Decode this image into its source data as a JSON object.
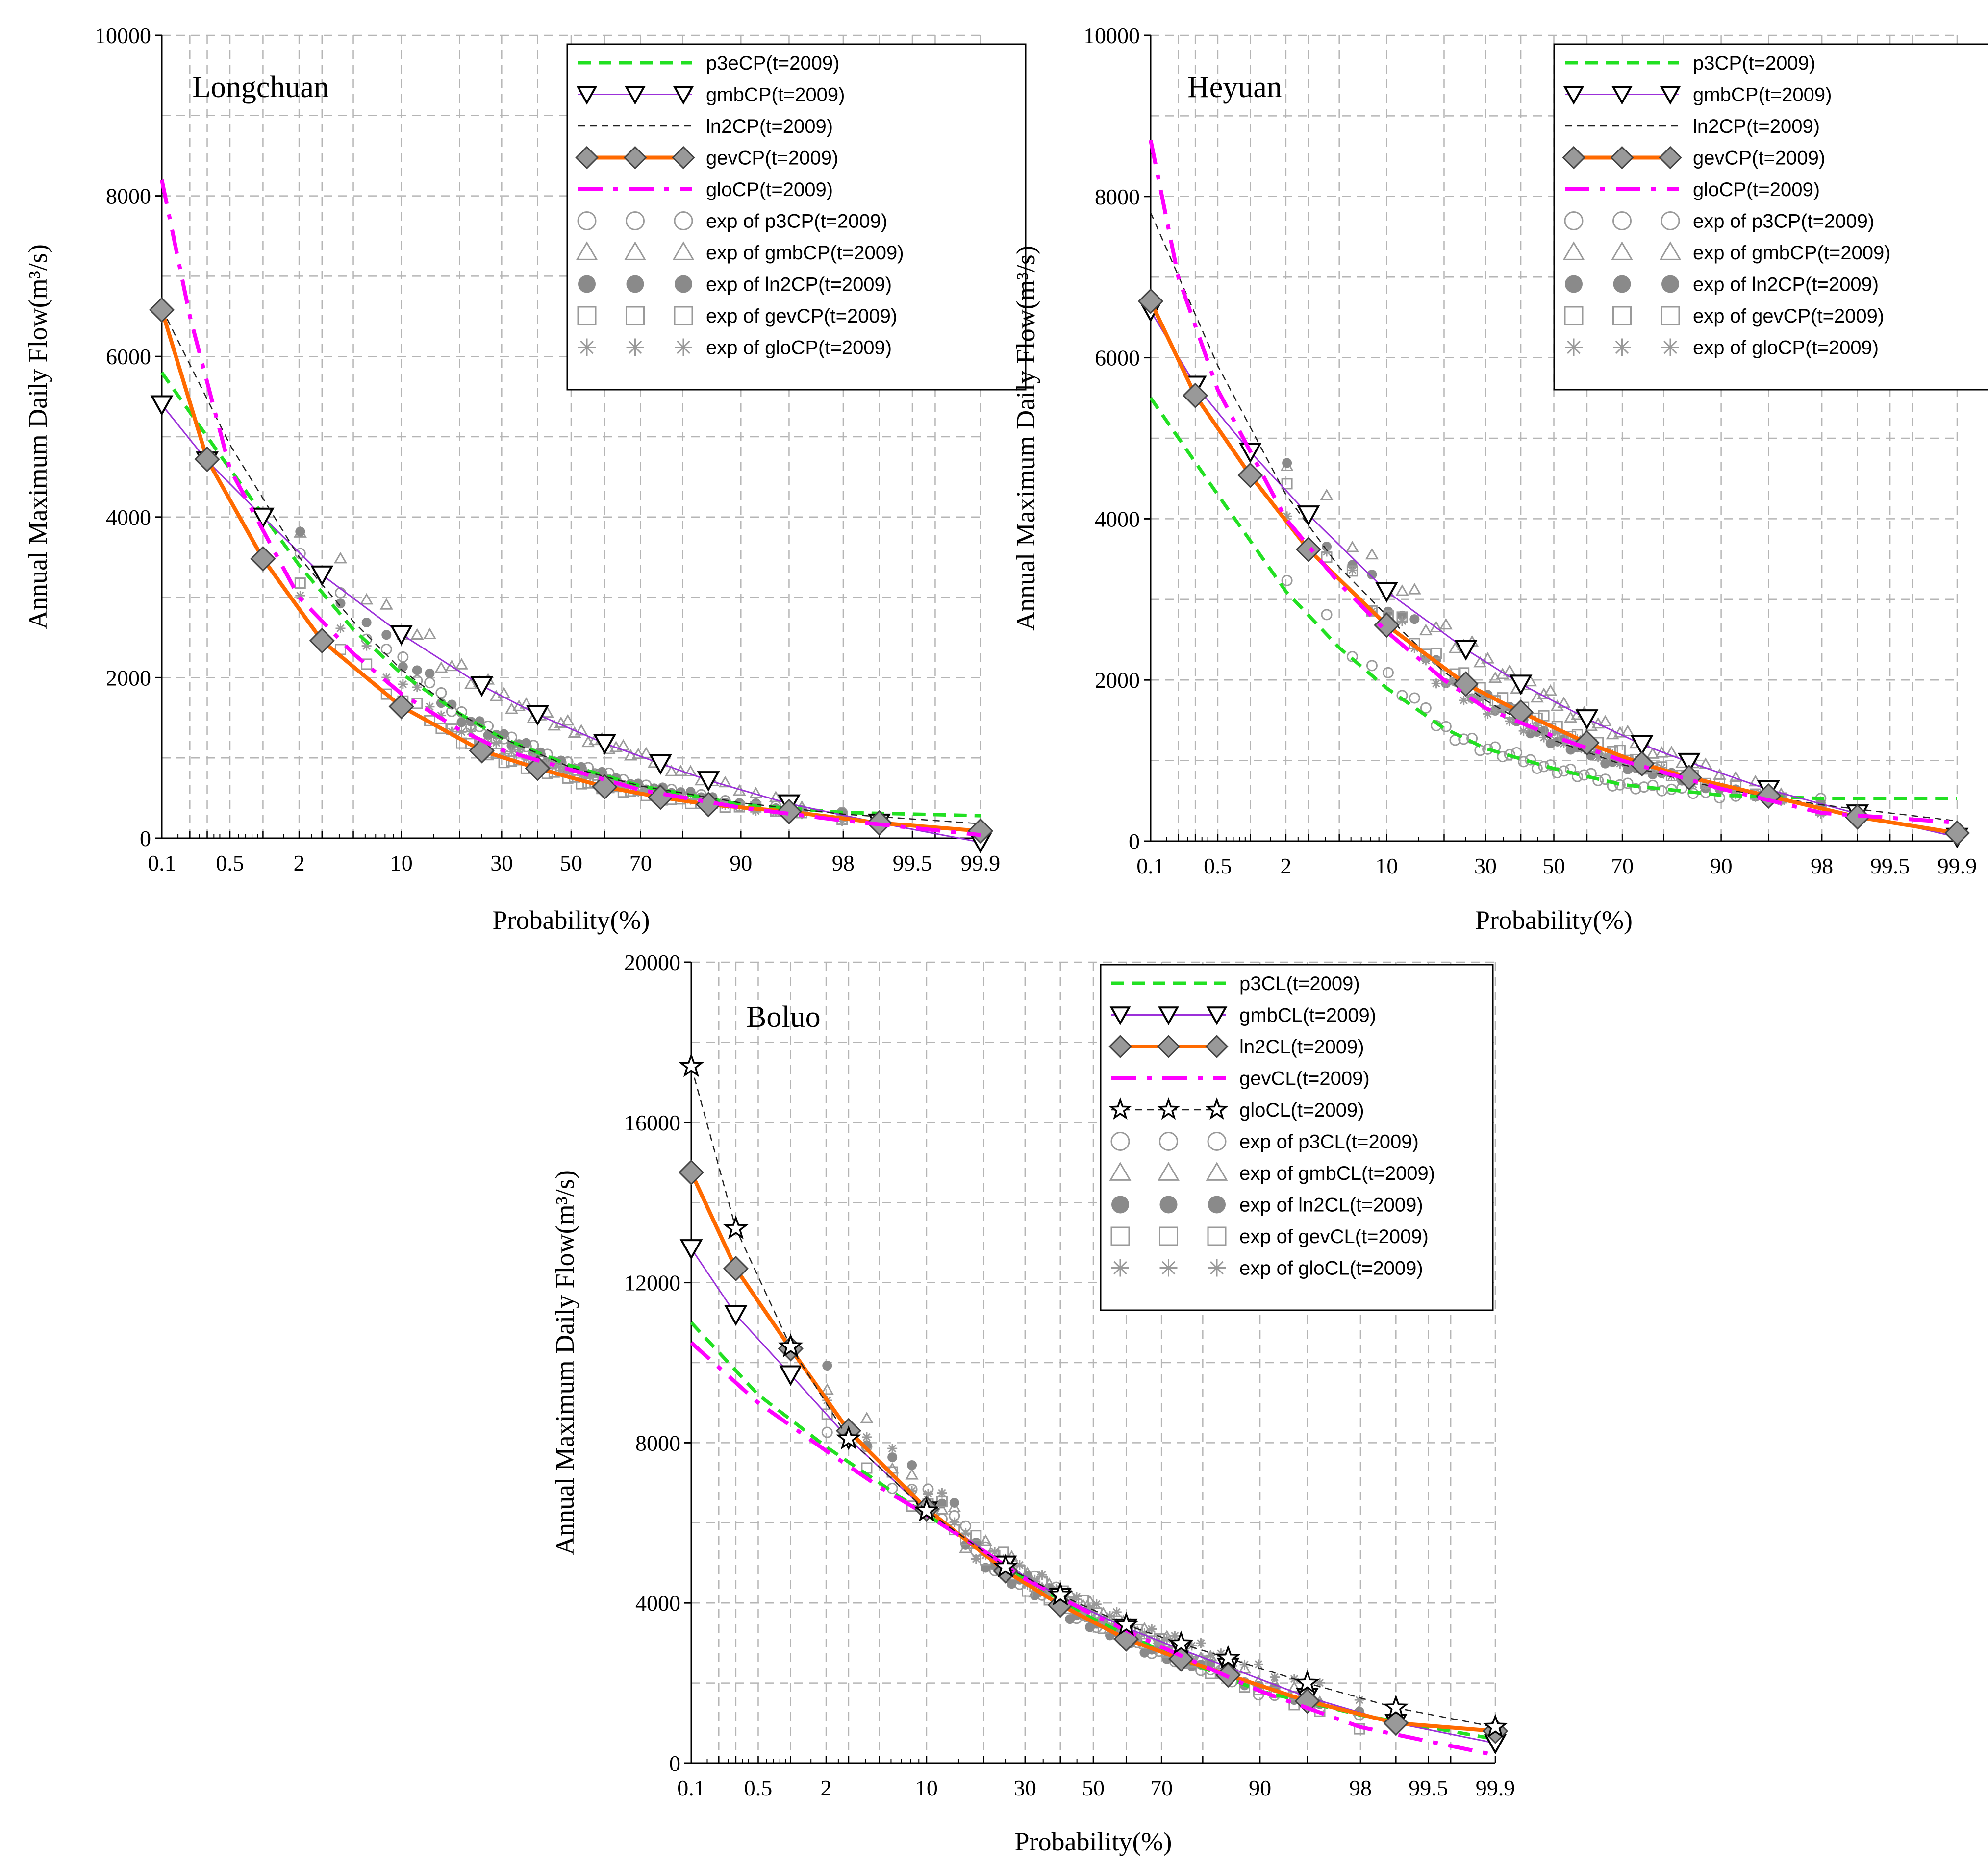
{
  "chart_data": [
    {
      "type": "line",
      "title": "Longchuan",
      "xlabel": "Probability(%)",
      "ylabel": "Annual Maximum Daily Flow(m³/s)",
      "xscale": "normal-probability",
      "xticks": [
        "0.1",
        "0.5",
        "2",
        "10",
        "30",
        "50",
        "70",
        "90",
        "98",
        "99.5",
        "99.9"
      ],
      "yticks": [
        "0",
        "2000",
        "4000",
        "6000",
        "8000",
        "10000"
      ],
      "ylim": [
        0,
        10000
      ],
      "legend_position": "top-right",
      "legend": [
        "p3eCP(t=2009)",
        "gmbCP(t=2009)",
        "ln2CP(t=2009)",
        "gevCP(t=2009)",
        "gloCP(t=2009)",
        "exp of p3CP(t=2009)",
        "exp of gmbCP(t=2009)",
        "exp of ln2CP(t=2009)",
        "exp of gevCP(t=2009)",
        "exp of gloCP(t=2009)"
      ],
      "series": [
        {
          "name": "p3eCP(t=2009)",
          "style": "dash-green",
          "x": [
            0.1,
            0.5,
            2,
            5,
            10,
            20,
            30,
            50,
            70,
            90,
            98,
            99.9
          ],
          "values": [
            5800,
            4600,
            3400,
            2600,
            2050,
            1550,
            1250,
            900,
            650,
            420,
            320,
            280
          ]
        },
        {
          "name": "gmbCP(t=2009)",
          "style": "triangle-purple",
          "x": [
            0.1,
            0.3,
            1,
            3,
            10,
            25,
            40,
            60,
            75,
            85,
            95,
            99,
            99.9
          ],
          "values": [
            5400,
            4700,
            4000,
            3280,
            2540,
            1900,
            1540,
            1180,
            930,
            720,
            430,
            190,
            -50
          ]
        },
        {
          "name": "ln2CP(t=2009)",
          "style": "dash-black",
          "x": [
            0.1,
            0.5,
            2,
            5,
            10,
            20,
            30,
            50,
            70,
            90,
            98,
            99.9
          ],
          "values": [
            6600,
            4900,
            3500,
            2700,
            2100,
            1550,
            1250,
            880,
            650,
            440,
            300,
            180
          ]
        },
        {
          "name": "gevCP(t=2009)",
          "style": "diamond-orange",
          "x": [
            0.1,
            0.3,
            1,
            3,
            10,
            25,
            40,
            60,
            75,
            85,
            95,
            99,
            99.9
          ],
          "values": [
            6580,
            4720,
            3480,
            2460,
            1640,
            1090,
            870,
            640,
            510,
            420,
            330,
            190,
            90
          ]
        },
        {
          "name": "gloCP(t=2009)",
          "style": "dashdot-magenta",
          "x": [
            0.1,
            0.2,
            0.5,
            2,
            5,
            10,
            20,
            30,
            50,
            70,
            90,
            98,
            99.9
          ],
          "values": [
            8200,
            6500,
            4600,
            3000,
            2300,
            1800,
            1350,
            1100,
            850,
            600,
            380,
            220,
            40
          ]
        }
      ]
    },
    {
      "type": "line",
      "title": "Heyuan",
      "xlabel": "Probability(%)",
      "ylabel": "Annual Maximum Daily Flow(m³/s)",
      "xscale": "normal-probability",
      "xticks": [
        "0.1",
        "0.5",
        "2",
        "10",
        "30",
        "50",
        "70",
        "90",
        "98",
        "99.5",
        "99.9"
      ],
      "yticks": [
        "0",
        "2000",
        "4000",
        "6000",
        "8000",
        "10000"
      ],
      "ylim": [
        0,
        10000
      ],
      "legend_position": "top-right",
      "legend": [
        "p3CP(t=2009)",
        "gmbCP(t=2009)",
        "ln2CP(t=2009)",
        "gevCP(t=2009)",
        "gloCP(t=2009)",
        "exp of p3CP(t=2009)",
        "exp of gmbCP(t=2009)",
        "exp of ln2CP(t=2009)",
        "exp of gevCP(t=2009)",
        "exp of gloCP(t=2009)"
      ],
      "series": [
        {
          "name": "p3CP(t=2009)",
          "style": "dash-green",
          "x": [
            0.1,
            0.5,
            2,
            5,
            10,
            20,
            30,
            50,
            70,
            90,
            98,
            99.9
          ],
          "values": [
            5500,
            4300,
            3100,
            2400,
            1900,
            1400,
            1150,
            900,
            700,
            570,
            530,
            530
          ]
        },
        {
          "name": "gmbCP(t=2009)",
          "style": "triangle-purple",
          "x": [
            0.1,
            0.3,
            1,
            3,
            10,
            25,
            40,
            60,
            75,
            85,
            95,
            99,
            99.9
          ],
          "values": [
            6580,
            5660,
            4830,
            4050,
            3100,
            2380,
            1950,
            1520,
            1200,
            980,
            640,
            340,
            50
          ]
        },
        {
          "name": "ln2CP(t=2009)",
          "style": "dash-black",
          "x": [
            0.1,
            0.5,
            2,
            5,
            10,
            20,
            30,
            50,
            70,
            90,
            98,
            99.9
          ],
          "values": [
            7800,
            5900,
            4300,
            3400,
            2800,
            2100,
            1750,
            1250,
            950,
            650,
            450,
            250
          ]
        },
        {
          "name": "gevCP(t=2009)",
          "style": "diamond-orange",
          "x": [
            0.1,
            0.3,
            1,
            3,
            10,
            25,
            40,
            60,
            75,
            85,
            95,
            99,
            99.9
          ],
          "values": [
            6700,
            5530,
            4540,
            3620,
            2680,
            1950,
            1600,
            1220,
            960,
            790,
            560,
            300,
            100
          ]
        },
        {
          "name": "gloCP(t=2009)",
          "style": "dashdot-magenta",
          "x": [
            0.1,
            0.2,
            0.5,
            2,
            5,
            10,
            20,
            30,
            50,
            70,
            90,
            98,
            99.9
          ],
          "values": [
            8700,
            7000,
            5600,
            4000,
            3200,
            2600,
            2000,
            1650,
            1300,
            1000,
            650,
            350,
            230
          ]
        }
      ]
    },
    {
      "type": "line",
      "title": "Boluo",
      "xlabel": "Probability(%)",
      "ylabel": "Annual Maximum Daily Flow(m³/s)",
      "xscale": "normal-probability",
      "xticks": [
        "0.1",
        "0.5",
        "2",
        "10",
        "30",
        "50",
        "70",
        "90",
        "98",
        "99.5",
        "99.9"
      ],
      "yticks": [
        "0",
        "4000",
        "8000",
        "12000",
        "16000",
        "20000"
      ],
      "ylim": [
        0,
        20000
      ],
      "legend_position": "top-right",
      "legend": [
        "p3CL(t=2009)",
        "gmbCL(t=2009)",
        "ln2CL(t=2009)",
        "gevCL(t=2009)",
        "gloCL(t=2009)",
        "exp of p3CL(t=2009)",
        "exp of gmbCL(t=2009)",
        "exp of ln2CL(t=2009)",
        "exp of gevCL(t=2009)",
        "exp of gloCL(t=2009)"
      ],
      "series": [
        {
          "name": "p3CL(t=2009)",
          "style": "dash-green",
          "x": [
            0.1,
            0.5,
            2,
            5,
            10,
            20,
            30,
            50,
            70,
            90,
            98,
            99.9
          ],
          "values": [
            11000,
            9200,
            7900,
            7000,
            6200,
            5300,
            4600,
            3600,
            2800,
            1800,
            1200,
            600
          ]
        },
        {
          "name": "gmbCL(t=2009)",
          "style": "triangle-purple",
          "x": [
            0.1,
            0.3,
            1,
            3,
            10,
            25,
            40,
            60,
            75,
            85,
            95,
            99,
            99.9
          ],
          "values": [
            12850,
            11200,
            9700,
            8100,
            6300,
            4950,
            4150,
            3380,
            2840,
            2400,
            1650,
            1000,
            500
          ]
        },
        {
          "name": "ln2CL(t=2009)",
          "style": "diamond-orange",
          "x": [
            0.1,
            0.3,
            1,
            3,
            10,
            25,
            40,
            60,
            75,
            85,
            95,
            99,
            99.9
          ],
          "values": [
            14750,
            12350,
            10350,
            8300,
            6350,
            4800,
            3950,
            3100,
            2600,
            2200,
            1550,
            1000,
            800
          ]
        },
        {
          "name": "gevCL(t=2009)",
          "style": "dashdot-magenta",
          "x": [
            0.1,
            0.5,
            2,
            5,
            10,
            20,
            30,
            50,
            70,
            90,
            98,
            99.9
          ],
          "values": [
            10500,
            9000,
            7800,
            6900,
            6200,
            5300,
            4600,
            3700,
            2900,
            1800,
            900,
            200
          ]
        },
        {
          "name": "gloCL(t=2009)",
          "style": "star-black",
          "x": [
            0.1,
            0.3,
            1,
            3,
            10,
            25,
            40,
            60,
            75,
            85,
            95,
            99,
            99.9
          ],
          "values": [
            17400,
            13350,
            10400,
            8100,
            6300,
            4900,
            4200,
            3450,
            2980,
            2620,
            2000,
            1380,
            900
          ]
        }
      ]
    }
  ]
}
